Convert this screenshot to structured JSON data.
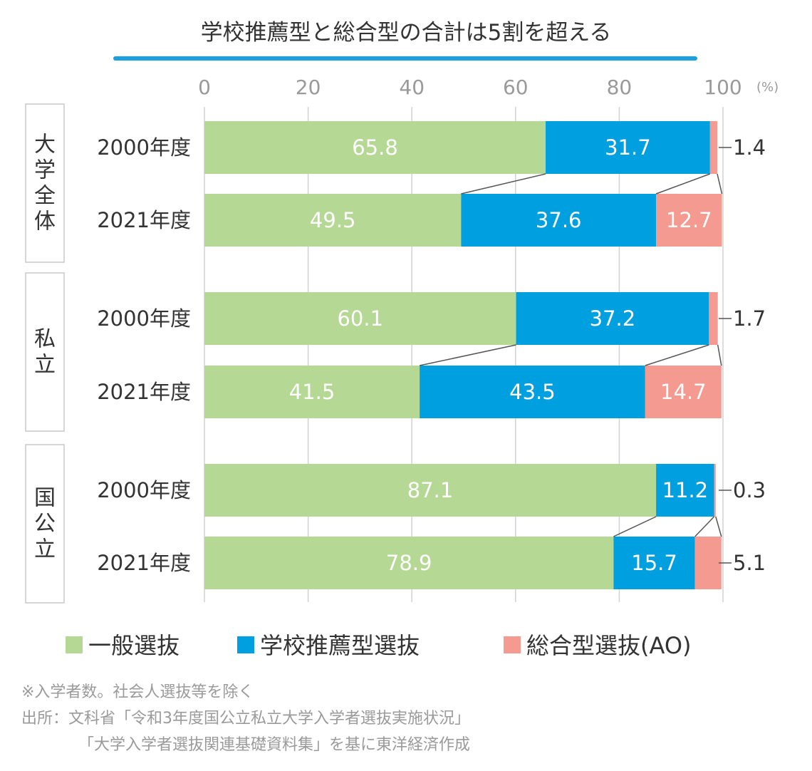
{
  "chart_data": {
    "type": "bar",
    "orientation": "horizontal",
    "stacked": true,
    "title": "学校推薦型と総合型の合計は5割を超える",
    "unit": "(%)",
    "xlim": [
      0,
      100
    ],
    "ticks": [
      "0",
      "20",
      "40",
      "60",
      "80",
      "100"
    ],
    "grid": true,
    "groups": [
      {
        "name": "大学全体",
        "rows": [
          {
            "label": "2000年度",
            "values": [
              65.8,
              31.7,
              1.4
            ]
          },
          {
            "label": "2021年度",
            "values": [
              49.5,
              37.6,
              12.7
            ]
          }
        ]
      },
      {
        "name": "私立",
        "rows": [
          {
            "label": "2000年度",
            "values": [
              60.1,
              37.2,
              1.7
            ]
          },
          {
            "label": "2021年度",
            "values": [
              41.5,
              43.5,
              14.7
            ]
          }
        ]
      },
      {
        "name": "国公立",
        "rows": [
          {
            "label": "2000年度",
            "values": [
              87.1,
              11.2,
              0.3
            ]
          },
          {
            "label": "2021年度",
            "values": [
              78.9,
              15.7,
              5.1
            ]
          }
        ]
      }
    ],
    "series": [
      {
        "name": "一般選抜",
        "color": "#b5d995"
      },
      {
        "name": "学校推薦型選抜",
        "color": "#00a0e0"
      },
      {
        "name": "総合型選抜(AO)",
        "color": "#f59a90"
      }
    ],
    "legend_position": "bottom",
    "notes": [
      "※入学者数。社会人選抜等を除く",
      "出所：文科省「令和3年度国公立私立大学入学者選抜実施状況」",
      "「大学入学者選抜関連基礎資料集」を基に東洋経済作成"
    ],
    "accent_color": "#1aa0dc"
  }
}
